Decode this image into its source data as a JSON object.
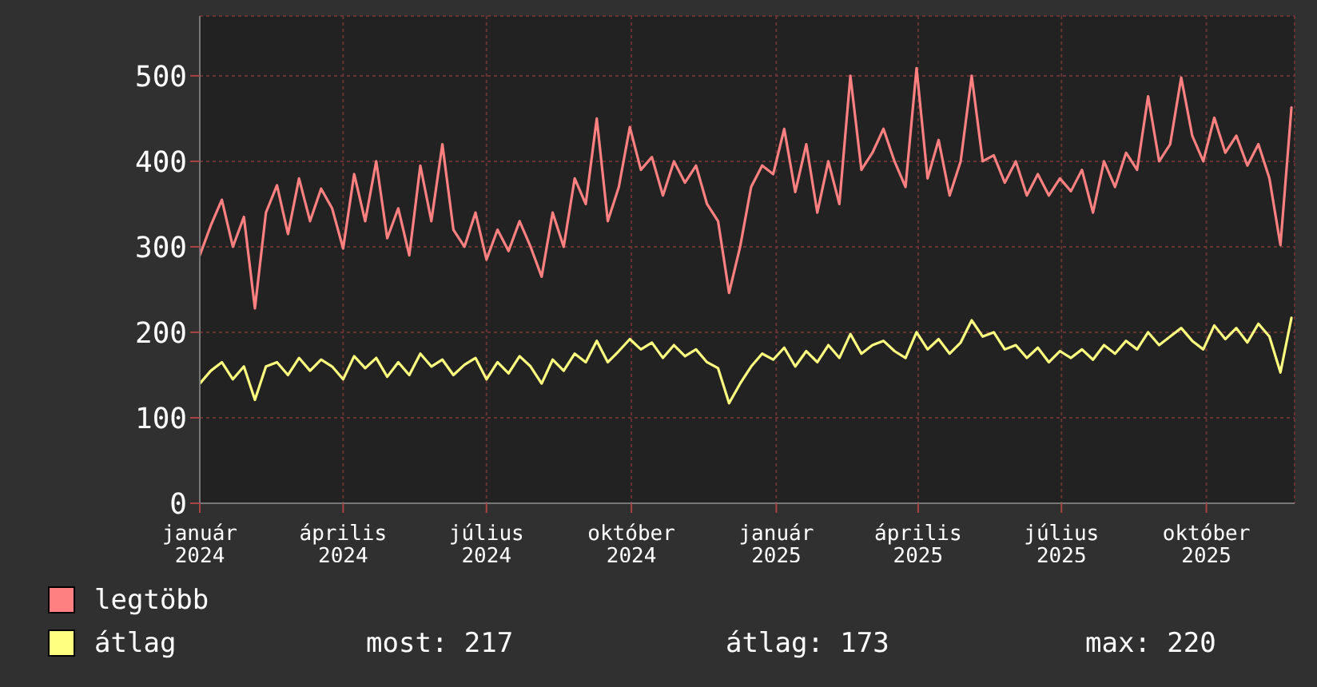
{
  "chart_data": {
    "type": "line",
    "x": [
      "2024-01-01",
      "2024-01-08",
      "2024-01-15",
      "2024-01-22",
      "2024-01-29",
      "2024-02-05",
      "2024-02-12",
      "2024-02-19",
      "2024-02-26",
      "2024-03-04",
      "2024-03-11",
      "2024-03-18",
      "2024-03-25",
      "2024-04-01",
      "2024-04-08",
      "2024-04-15",
      "2024-04-22",
      "2024-04-29",
      "2024-05-06",
      "2024-05-13",
      "2024-05-20",
      "2024-05-27",
      "2024-06-03",
      "2024-06-10",
      "2024-06-17",
      "2024-06-24",
      "2024-07-01",
      "2024-07-08",
      "2024-07-15",
      "2024-07-22",
      "2024-07-29",
      "2024-08-05",
      "2024-08-12",
      "2024-08-19",
      "2024-08-26",
      "2024-09-02",
      "2024-09-09",
      "2024-09-16",
      "2024-09-23",
      "2024-09-30",
      "2024-10-07",
      "2024-10-14",
      "2024-10-21",
      "2024-10-28",
      "2024-11-04",
      "2024-11-11",
      "2024-11-18",
      "2024-11-25",
      "2024-12-02",
      "2024-12-09",
      "2024-12-16",
      "2024-12-23",
      "2024-12-30",
      "2025-01-06",
      "2025-01-13",
      "2025-01-20",
      "2025-01-27",
      "2025-02-03",
      "2025-02-10",
      "2025-02-17",
      "2025-02-24",
      "2025-03-03",
      "2025-03-10",
      "2025-03-17",
      "2025-03-24",
      "2025-03-31",
      "2025-04-07",
      "2025-04-14",
      "2025-04-21",
      "2025-04-28",
      "2025-05-05",
      "2025-05-12",
      "2025-05-19",
      "2025-05-26",
      "2025-06-02",
      "2025-06-09",
      "2025-06-16",
      "2025-06-23",
      "2025-06-30",
      "2025-07-07",
      "2025-07-14",
      "2025-07-21",
      "2025-07-28",
      "2025-08-04",
      "2025-08-11",
      "2025-08-18",
      "2025-08-25",
      "2025-09-01",
      "2025-09-08",
      "2025-09-15",
      "2025-09-22",
      "2025-09-29",
      "2025-10-06",
      "2025-10-13",
      "2025-10-20",
      "2025-10-27",
      "2025-11-03",
      "2025-11-10",
      "2025-11-17",
      "2025-11-24"
    ],
    "series": [
      {
        "name": "legtöbb",
        "color": "#ff8080",
        "values": [
          290,
          325,
          355,
          300,
          335,
          228,
          340,
          372,
          315,
          380,
          330,
          368,
          345,
          298,
          385,
          330,
          400,
          310,
          345,
          290,
          395,
          330,
          420,
          320,
          300,
          340,
          285,
          320,
          295,
          330,
          300,
          265,
          340,
          300,
          380,
          350,
          450,
          330,
          370,
          440,
          390,
          405,
          360,
          400,
          375,
          395,
          350,
          330,
          246,
          300,
          370,
          395,
          385,
          438,
          364,
          420,
          340,
          400,
          350,
          500,
          390,
          410,
          438,
          400,
          370,
          509,
          380,
          425,
          360,
          400,
          500,
          400,
          407,
          375,
          400,
          360,
          385,
          360,
          380,
          365,
          390,
          340,
          400,
          370,
          410,
          390,
          476,
          400,
          420,
          498,
          430,
          400,
          451,
          410,
          430,
          395,
          420,
          380,
          302,
          463
        ]
      },
      {
        "name": "átlag",
        "color": "#ffff80",
        "values": [
          140,
          155,
          165,
          145,
          160,
          121,
          160,
          165,
          150,
          170,
          155,
          168,
          160,
          145,
          172,
          158,
          170,
          148,
          165,
          150,
          175,
          160,
          168,
          150,
          162,
          170,
          145,
          165,
          152,
          172,
          160,
          140,
          168,
          155,
          175,
          165,
          190,
          165,
          178,
          192,
          180,
          188,
          170,
          185,
          172,
          180,
          165,
          158,
          117,
          140,
          160,
          175,
          168,
          182,
          160,
          178,
          165,
          185,
          170,
          198,
          175,
          185,
          190,
          178,
          170,
          200,
          180,
          192,
          175,
          188,
          214,
          195,
          200,
          180,
          185,
          170,
          182,
          165,
          178,
          170,
          180,
          168,
          185,
          175,
          190,
          180,
          200,
          185,
          195,
          205,
          190,
          180,
          208,
          192,
          205,
          188,
          210,
          195,
          153,
          217
        ]
      }
    ],
    "xlim": [
      "2024-01-01",
      "2025-11-26"
    ],
    "xticks": [
      {
        "value": "2024-01-01",
        "label": "január 2024"
      },
      {
        "value": "2024-04-01",
        "label": "április 2024"
      },
      {
        "value": "2024-07-01",
        "label": "július 2024"
      },
      {
        "value": "2024-10-01",
        "label": "október 2024"
      },
      {
        "value": "2025-01-01",
        "label": "január 2025"
      },
      {
        "value": "2025-04-01",
        "label": "április 2025"
      },
      {
        "value": "2025-07-01",
        "label": "július 2025"
      },
      {
        "value": "2025-10-01",
        "label": "október 2025"
      }
    ],
    "ylim": [
      0,
      570
    ],
    "yticks": [
      0,
      100,
      200,
      300,
      400,
      500
    ],
    "grid": true,
    "legend": "bottom",
    "annotations": [
      "most: 217",
      "átlag: 173",
      "max: 220"
    ]
  }
}
